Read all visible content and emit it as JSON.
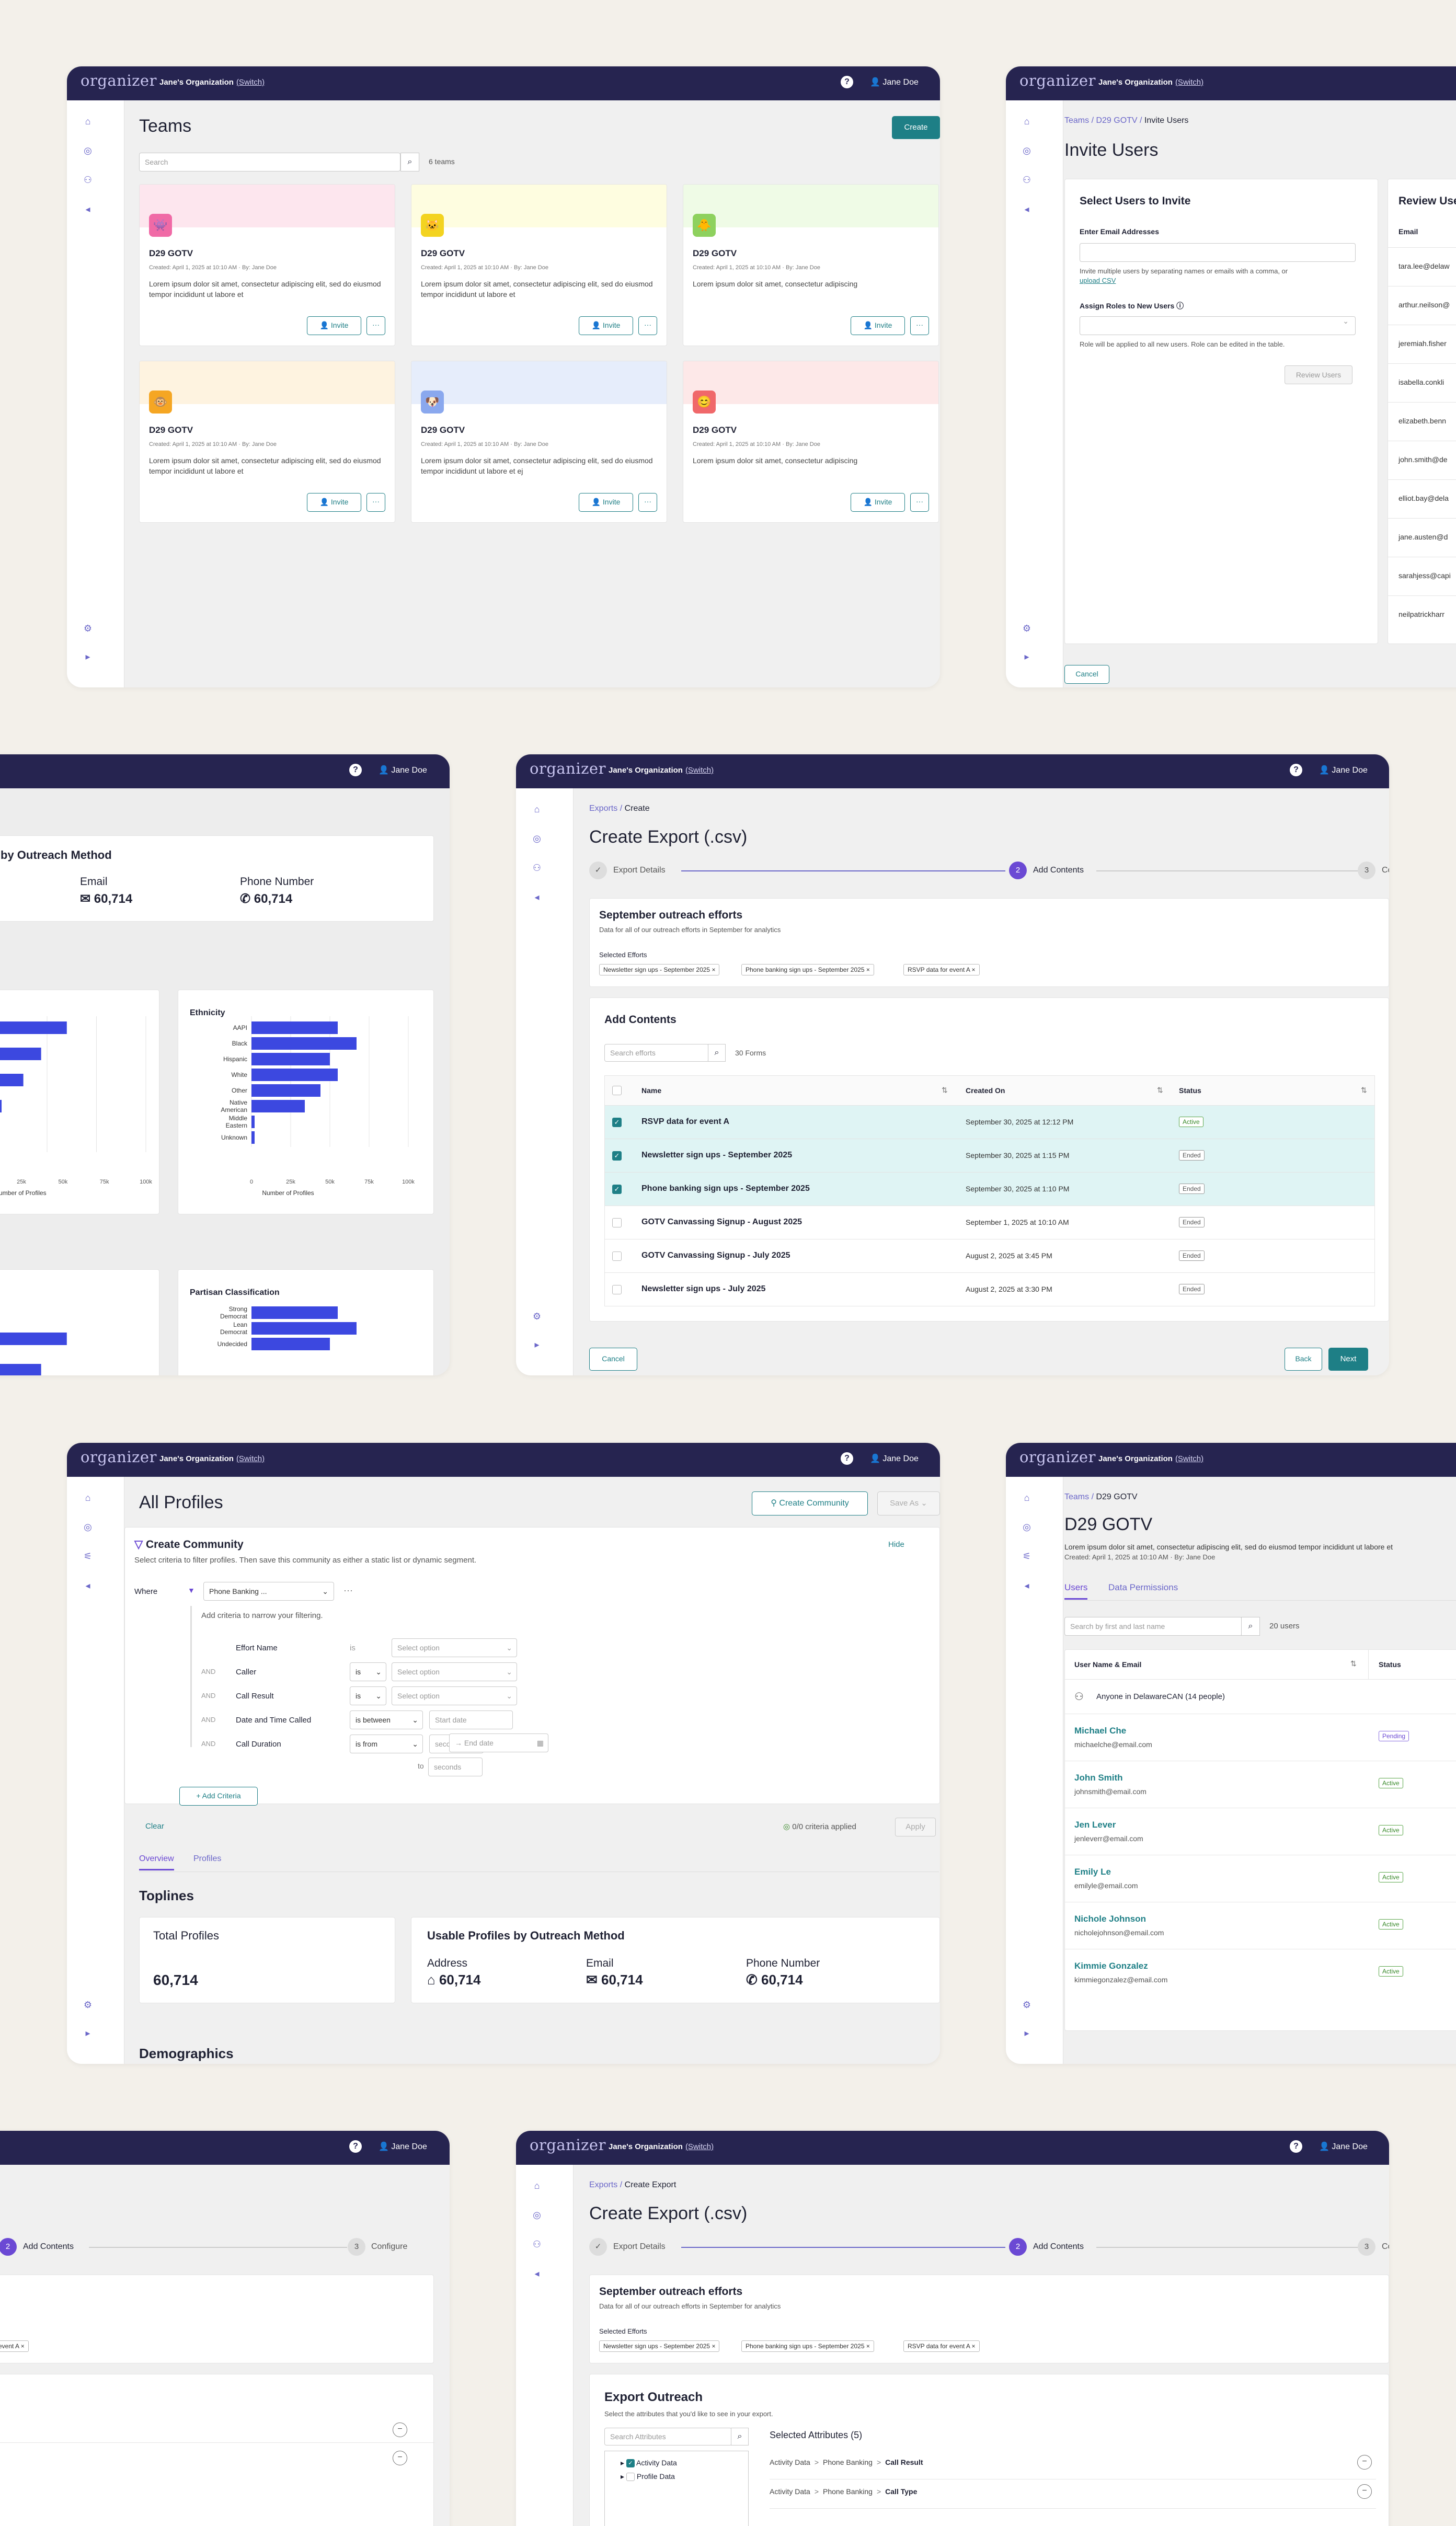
{
  "app": {
    "logo": "organizer",
    "org": "Jane's Organization",
    "switch": "(Switch)",
    "user": "Jane Doe",
    "help": "?"
  },
  "teams": {
    "title": "Teams",
    "create": "Create",
    "search_placeholder": "Search",
    "count": "6 teams",
    "cards": [
      {
        "name": "D29 GOTV",
        "meta": "Created: April 1, 2025 at 10:10 AM · By: Jane Doe",
        "desc": "Lorem ipsum dolor sit amet, consectetur adipiscing elit, sed do eiusmod tempor incididunt ut labore et",
        "band": "#fde6ee",
        "avatar": "#f06aa6",
        "icon": "👾"
      },
      {
        "name": "D29 GOTV",
        "meta": "Created: April 1, 2025 at 10:10 AM · By: Jane Doe",
        "desc": "Lorem ipsum dolor sit amet, consectetur adipiscing elit, sed do eiusmod tempor incididunt ut labore et",
        "band": "#fefde0",
        "avatar": "#f3d320",
        "icon": "🐱"
      },
      {
        "name": "D29 GOTV",
        "meta": "Created: April 1, 2025 at 10:10 AM · By: Jane Doe",
        "desc": "Lorem ipsum dolor sit amet, consectetur adipiscing",
        "band": "#effbe6",
        "avatar": "#8ed15e",
        "icon": "🐥"
      },
      {
        "name": "D29 GOTV",
        "meta": "Created: April 1, 2025 at 10:10 AM · By: Jane Doe",
        "desc": "Lorem ipsum dolor sit amet, consectetur adipiscing elit, sed do eiusmod tempor incididunt ut labore et",
        "band": "#fef3e0",
        "avatar": "#f5a623",
        "icon": "🐵"
      },
      {
        "name": "D29 GOTV",
        "meta": "Created: April 1, 2025 at 10:10 AM · By: Jane Doe",
        "desc": "Lorem ipsum dolor sit amet, consectetur adipiscing elit, sed do eiusmod tempor incididunt ut labore et ej",
        "band": "#e6edfb",
        "avatar": "#8aa8ee",
        "icon": "🐶"
      },
      {
        "name": "D29 GOTV",
        "meta": "Created: April 1, 2025 at 10:10 AM · By: Jane Doe",
        "desc": "Lorem ipsum dolor sit amet, consectetur adipiscing",
        "band": "#fde8e8",
        "avatar": "#f0686a",
        "icon": "😊"
      }
    ],
    "invite": "Invite",
    "more": "···"
  },
  "invite": {
    "crumb1": "Teams",
    "crumb2": "D29 GOTV",
    "crumb3": "Invite Users",
    "title": "Invite Users",
    "select_title": "Select Users to Invite",
    "review_title": "Review Users",
    "email_label": "Enter Email Addresses",
    "email_help": "Invite multiple users by separating names or emails with a comma, or",
    "upload": "upload CSV",
    "roles_label": "Assign Roles to New Users",
    "roles_help": "Role will be applied to all new users. Role can be edited in the table.",
    "review_btn": "Review Users",
    "cancel": "Cancel",
    "email_col": "Email",
    "emails": [
      "tara.lee@delaw",
      "arthur.neilson@",
      "jeremiah.fisher",
      "isabella.conkli",
      "elizabeth.benn",
      "john.smith@de",
      "elliot.bay@dela",
      "jane.austen@d",
      "sarahjess@capi",
      "neilpatrickharr"
    ]
  },
  "outreach_partial": {
    "title": "by Outreach Method",
    "email_label": "Email",
    "email_val": "60,714",
    "phone_label": "Phone Number",
    "phone_val": "60,714",
    "eth_title": "Ethnicity",
    "eth_xlabel": "Number of Profiles",
    "left_xlabel": "Number of Profiles",
    "partisan_title": "Partisan Classification"
  },
  "chart_data": [
    {
      "type": "bar",
      "title": "Ethnicity",
      "xlabel": "Number of Profiles",
      "categories": [
        "AAPI",
        "Black",
        "Hispanic",
        "White",
        "Other",
        "Native American",
        "Middle Eastern",
        "Unknown"
      ],
      "values": [
        55000,
        67000,
        50000,
        55000,
        44000,
        34000,
        2000,
        2000
      ],
      "xlim": [
        0,
        100000
      ],
      "ticks": [
        "0",
        "25k",
        "50k",
        "75k",
        "100k"
      ]
    },
    {
      "type": "bar",
      "title": "",
      "xlabel": "Number of Profiles",
      "categories": [
        "",
        "",
        "",
        "",
        ""
      ],
      "values": [
        60000,
        47000,
        38000,
        27000,
        2000
      ],
      "xlim": [
        0,
        100000
      ],
      "ticks": [
        "25k",
        "50k",
        "75k",
        "100k"
      ]
    },
    {
      "type": "bar",
      "title": "Partisan Classification",
      "categories": [
        "Strong Democrat",
        "Lean Democrat",
        "Undecided"
      ],
      "values": [
        55000,
        67000,
        50000
      ],
      "xlim": [
        0,
        100000
      ]
    }
  ],
  "export1": {
    "crumb1": "Exports",
    "crumb2": "Create",
    "title": "Create Export (.csv)",
    "steps": [
      "Export Details",
      "Add Contents",
      "Configure"
    ],
    "step2": "2",
    "step3": "3",
    "eff_title": "September outreach efforts",
    "eff_desc": "Data for all of our outreach efforts in September for analytics",
    "sel_label": "Selected Efforts",
    "chips": [
      "Newsletter sign ups - September 2025 ×",
      "Phone banking sign ups - September 2025 ×",
      "RSVP data for event A ×"
    ],
    "add_title": "Add Contents",
    "search_placeholder": "Search efforts",
    "count": "30 Forms",
    "cols": [
      "Name",
      "Created On",
      "Status"
    ],
    "rows": [
      {
        "name": "RSVP data for event A",
        "date": "September 30, 2025 at 12:12 PM",
        "status": "Active",
        "checked": true
      },
      {
        "name": "Newsletter sign ups - September 2025",
        "date": "September 30, 2025 at 1:15 PM",
        "status": "Ended",
        "checked": true
      },
      {
        "name": "Phone banking sign ups - September 2025",
        "date": "September 30, 2025 at 1:10 PM",
        "status": "Ended",
        "checked": true
      },
      {
        "name": "GOTV Canvassing Signup - August 2025",
        "date": "September 1, 2025 at 10:10 AM",
        "status": "Ended",
        "checked": false
      },
      {
        "name": "GOTV Canvassing Signup - July 2025",
        "date": "August 2, 2025 at 3:45 PM",
        "status": "Ended",
        "checked": false
      },
      {
        "name": "Newsletter sign ups - July 2025",
        "date": "August 2, 2025 at 3:30 PM",
        "status": "Ended",
        "checked": false
      }
    ],
    "cancel": "Cancel",
    "back": "Back",
    "next": "Next"
  },
  "profiles": {
    "title": "All Profiles",
    "create_comm": "Create Community",
    "save_as": "Save As",
    "cc_title": "Create Community",
    "cc_desc": "Select criteria to filter profiles. Then save this community as either a static list or dynamic segment.",
    "hide": "Hide",
    "where": "Where",
    "phone": "Phone Banking ...",
    "narrow": "Add criteria to narrow your filtering.",
    "crit": [
      {
        "and": "",
        "name": "Effort Name",
        "op": "is",
        "val": "Select option"
      },
      {
        "and": "AND",
        "name": "Caller",
        "op": "is",
        "val": "Select option"
      },
      {
        "and": "AND",
        "name": "Call Result",
        "op": "is",
        "val": "Select option"
      },
      {
        "and": "AND",
        "name": "Date and Time Called",
        "op": "is between",
        "val": "Start date"
      },
      {
        "and": "AND",
        "name": "Call Duration",
        "op": "is from",
        "val": "seconds"
      }
    ],
    "end_date": "End date",
    "to": "to",
    "seconds2": "seconds",
    "add_crit": "+ Add Criteria",
    "clear": "Clear",
    "applied": "0/0 criteria applied",
    "apply": "Apply",
    "tab1": "Overview",
    "tab2": "Profiles",
    "toplines": "Toplines",
    "total_label": "Total Profiles",
    "total_val": "60,714",
    "usable": "Usable Profiles by Outreach Method",
    "addr": "Address",
    "addr_val": "60,714",
    "email": "Email",
    "email_val": "60,714",
    "phone_lbl": "Phone Number",
    "phone_val": "60,714",
    "demo": "Demographics"
  },
  "team_detail": {
    "crumb1": "Teams",
    "crumb2": "D29 GOTV",
    "title": "D29 GOTV",
    "desc": "Lorem ipsum dolor sit amet, consectetur adipiscing elit, sed do eiusmod tempor incididunt ut labore et",
    "meta": "Created: April 1, 2025 at 10:10 AM · By: Jane Doe",
    "tab1": "Users",
    "tab2": "Data Permissions",
    "search_placeholder": "Search by first and last name",
    "count": "20 users",
    "col1": "User Name & Email",
    "col2": "Status",
    "anyone": "Anyone in DelawareCAN (14 people)",
    "users": [
      {
        "name": "Michael Che",
        "email": "michaelche@email.com",
        "status": "Pending"
      },
      {
        "name": "John Smith",
        "email": "johnsmith@email.com",
        "status": "Active"
      },
      {
        "name": "Jen Lever",
        "email": "jenleverr@email.com",
        "status": "Active"
      },
      {
        "name": "Emily Le",
        "email": "emilyle@email.com",
        "status": "Active"
      },
      {
        "name": "Nichole Johnson",
        "email": "nicholejohnson@email.com",
        "status": "Active"
      },
      {
        "name": "Kimmie Gonzalez",
        "email": "kimmiegonzalez@email.com",
        "status": "Active"
      }
    ]
  },
  "partial4": {
    "step2": "2",
    "add": "Add Contents",
    "step3": "3",
    "configure": "Configure",
    "chip": "event A ×"
  },
  "export2": {
    "crumb1": "Exports",
    "crumb2": "Create Export",
    "title": "Create Export (.csv)",
    "steps": [
      "Export Details",
      "Add Contents",
      "Configure"
    ],
    "step2": "2",
    "step3": "3",
    "eff_title": "September outreach efforts",
    "eff_desc": "Data for all of our outreach efforts in September for analytics",
    "sel_label": "Selected Efforts",
    "chips": [
      "Newsletter sign ups - September 2025 ×",
      "Phone banking sign ups - September 2025 ×",
      "RSVP data for event A ×"
    ],
    "out_title": "Export Outreach",
    "out_desc": "Select the attributes that you'd like to see in your export.",
    "search_placeholder": "Search Attributes",
    "selected": "Selected Attributes (5)",
    "tree1": "Activity Data",
    "tree2": "Profile Data",
    "attrs": [
      {
        "a": "Activity Data",
        "b": "Phone Banking",
        "c": "Call Result"
      },
      {
        "a": "Activity Data",
        "b": "Phone Banking",
        "c": "Call Type"
      }
    ]
  }
}
